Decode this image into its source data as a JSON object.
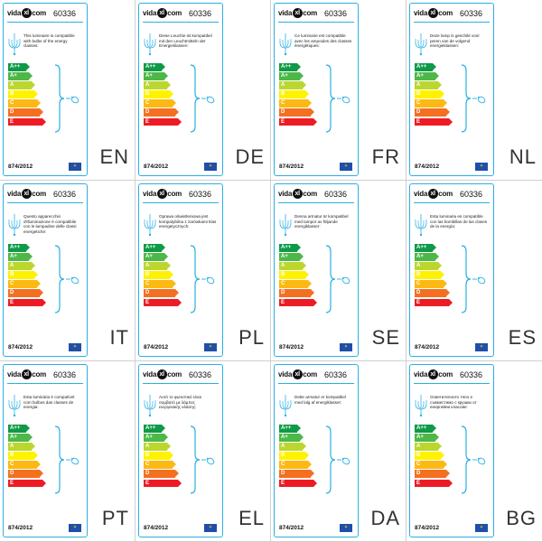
{
  "panels": [
    {
      "brand": "vida",
      "brand_suffix": "com",
      "brand_mark": "xl",
      "model": "60336",
      "text": "This luminaire is compatible with bulbs of the energy classes:",
      "regulation": "874/2012",
      "language": "EN"
    },
    {
      "brand": "vida",
      "brand_suffix": "com",
      "brand_mark": "xl",
      "model": "60336",
      "text": "Diese Leuchte ist kompatibel mit den Leuchtmitteln der Energieklassen:",
      "regulation": "874/2012",
      "language": "DE"
    },
    {
      "brand": "vida",
      "brand_suffix": "com",
      "brand_mark": "xl",
      "model": "60336",
      "text": "Ce luminaire est compatible avec les ampoules des classes énergétiques:",
      "regulation": "874/2012",
      "language": "FR"
    },
    {
      "brand": "vida",
      "brand_suffix": "com",
      "brand_mark": "xl",
      "model": "60336",
      "text": "Deze lamp is geschikt voor peren van de volgend energieklassen:",
      "regulation": "874/2012",
      "language": "NL"
    },
    {
      "brand": "vida",
      "brand_suffix": "com",
      "brand_mark": "xl",
      "model": "60336",
      "text": "Questo apparecchio d'illuminazione è compatibile con le lampadine delle classi energetiche:",
      "regulation": "874/2012",
      "language": "IT"
    },
    {
      "brand": "vida",
      "brand_suffix": "com",
      "brand_mark": "xl",
      "model": "60336",
      "text": "Oprawa oświetleniowa jest kompatybilna z żarówkami klas energetycznych:",
      "regulation": "874/2012",
      "language": "PL"
    },
    {
      "brand": "vida",
      "brand_suffix": "com",
      "brand_mark": "xl",
      "model": "60336",
      "text": "Denna armatur är kompatibel med lampor av följande energiklasser:",
      "regulation": "874/2012",
      "language": "SE"
    },
    {
      "brand": "vida",
      "brand_suffix": "com",
      "brand_mark": "xl",
      "model": "60336",
      "text": "Esta luminaria es compatible con las bombillas de las clases de la energía:",
      "regulation": "874/2012",
      "language": "ES"
    },
    {
      "brand": "vida",
      "brand_suffix": "com",
      "brand_mark": "xl",
      "model": "60336",
      "text": "Esta luminária é compatível com bulbos das classes de energia:",
      "regulation": "874/2012",
      "language": "PT"
    },
    {
      "brand": "vida",
      "brand_suffix": "com",
      "brand_mark": "xl",
      "model": "60336",
      "text": "Αυτό το φωτιστικό είναι συμβατό με λάμπες ενεργειακής κλάσης:",
      "regulation": "874/2012",
      "language": "EL"
    },
    {
      "brand": "vida",
      "brand_suffix": "com",
      "brand_mark": "xl",
      "model": "60336",
      "text": "Dette armatur er kompatibel med lalg af energiklasser:",
      "regulation": "874/2012",
      "language": "DA"
    },
    {
      "brand": "vida",
      "brand_suffix": "com",
      "brand_mark": "xl",
      "model": "60336",
      "text": "Осветителното тяло е съвместимо с крушки от енергийни класове:",
      "regulation": "874/2012",
      "language": "BG"
    }
  ],
  "energy_classes": [
    {
      "label": "A++",
      "color": "#0f9a48"
    },
    {
      "label": "A+",
      "color": "#4db848"
    },
    {
      "label": "A",
      "color": "#bcd630"
    },
    {
      "label": "B",
      "color": "#fff200"
    },
    {
      "label": "C",
      "color": "#fdb913"
    },
    {
      "label": "D",
      "color": "#f37021"
    },
    {
      "label": "E",
      "color": "#ed1c24"
    }
  ],
  "icons": {
    "lamp": "chandelier-icon",
    "bulb": "bulb-icon",
    "eu": "eu-flag-icon"
  },
  "colors": {
    "frame": "#2ab0e3",
    "eu_blue": "#1f4fa8",
    "eu_star": "#f2d21b"
  }
}
